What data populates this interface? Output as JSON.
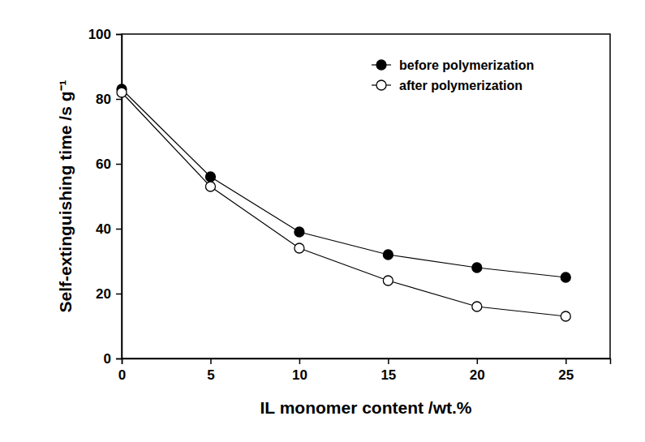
{
  "chart_data": {
    "type": "line",
    "x_label": "IL monomer content /wt.%",
    "y_label": "Self-extinguishing time /s g⁻¹",
    "x": [
      0,
      5,
      10,
      15,
      20,
      25
    ],
    "series": [
      {
        "name": "before polymerization",
        "color": "#000000",
        "marker": "circle",
        "line_style": "solid",
        "values": [
          83,
          56,
          39,
          32,
          28,
          25
        ]
      },
      {
        "name": "after polymerization",
        "color": "#000000",
        "marker": "open-circle",
        "line_style": "solid",
        "values": [
          82,
          53,
          34,
          24,
          16,
          13
        ]
      }
    ],
    "xlim": [
      0,
      27.5
    ],
    "xticks": [
      0,
      5,
      10,
      15,
      20,
      25
    ],
    "ylim": [
      0,
      100
    ],
    "yticks": [
      0,
      20,
      40,
      60,
      80,
      100
    ],
    "grid": false,
    "legend": "upper right"
  }
}
